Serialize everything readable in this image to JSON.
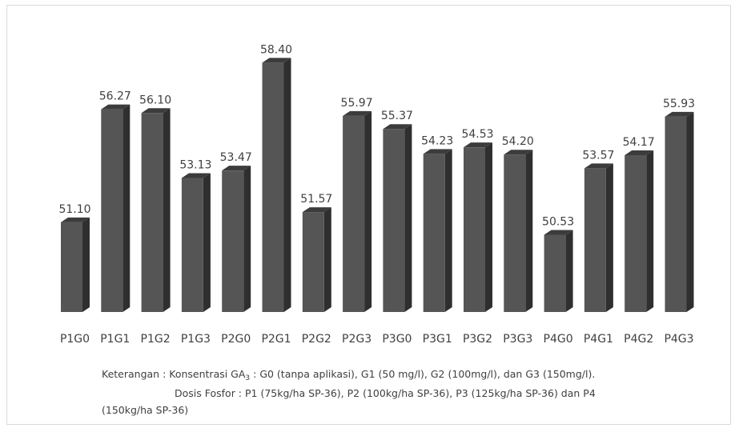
{
  "chart_data": {
    "type": "bar",
    "categories": [
      "P1G0",
      "P1G1",
      "P1G2",
      "P1G3",
      "P2G0",
      "P2G1",
      "P2G2",
      "P2G3",
      "P3G0",
      "P3G1",
      "P3G2",
      "P3G3",
      "P4G0",
      "P4G1",
      "P4G2",
      "P4G3"
    ],
    "values": [
      51.1,
      56.27,
      56.1,
      53.13,
      53.47,
      58.4,
      51.57,
      55.97,
      55.37,
      54.23,
      54.53,
      54.2,
      50.53,
      53.57,
      54.17,
      55.93
    ],
    "value_labels": [
      "51.10",
      "56.27",
      "56.10",
      "53.13",
      "53.47",
      "58.40",
      "51.57",
      "55.97",
      "55.37",
      "54.23",
      "54.53",
      "54.20",
      "50.53",
      "53.57",
      "54.17",
      "55.93"
    ],
    "title": "",
    "xlabel": "",
    "ylabel": "",
    "ylim": [
      47,
      59
    ],
    "grid": false,
    "bar_style": "3d",
    "colors": {
      "bar_front": "#555555",
      "bar_side": "#2f2f2f",
      "bar_top": "#3c3c3c",
      "text": "#404040"
    }
  },
  "notes": {
    "line1_prefix": "Keterangan : Konsentrasi GA",
    "line1_sub": "3",
    "line1_suffix": " : G0 (tanpa aplikasi), G1 (50 mg/l), G2 (100mg/l), dan G3 (150mg/l).",
    "line2": "Dosis Fosfor : P1 (75kg/ha SP-36), P2 (100kg/ha SP-36), P3 (125kg/ha SP-36) dan P4",
    "line3": "(150kg/ha SP-36)"
  }
}
